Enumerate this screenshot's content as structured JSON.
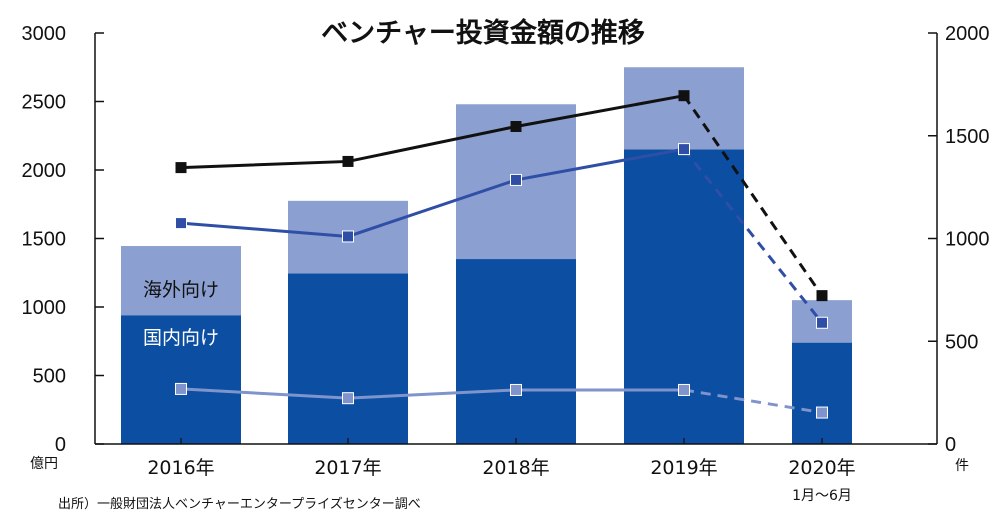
{
  "chart_data": {
    "type": "bar",
    "title": "ベンチャー投資金額の推移",
    "categories": [
      "2016年",
      "2017年",
      "2018年",
      "2019年",
      "2020年"
    ],
    "category_note": "1月～6月",
    "left_axis": {
      "unit": "億円",
      "ylim": [
        0,
        3000
      ],
      "ticks": [
        0,
        500,
        1000,
        1500,
        2000,
        2500,
        3000
      ]
    },
    "right_axis": {
      "unit": "件",
      "ylim": [
        0,
        2000
      ],
      "ticks": [
        0,
        500,
        1000,
        1500,
        2000
      ]
    },
    "stacked_bars": [
      {
        "name": "国内向け",
        "color": "#0b4ea2",
        "values": [
          940,
          1245,
          1350,
          2150,
          740
        ]
      },
      {
        "name": "海外向け",
        "color": "#8b9fd1",
        "values": [
          505,
          530,
          1130,
          600,
          310
        ]
      }
    ],
    "lines": [
      {
        "color": "#111111",
        "axis": "right",
        "values": [
          1345,
          1375,
          1545,
          1695,
          722
        ]
      },
      {
        "color": "#2f4fa6",
        "axis": "right",
        "values": [
          1075,
          1010,
          1285,
          1435,
          590
        ]
      },
      {
        "color": "#7f93cc",
        "axis": "right",
        "values": [
          268,
          223,
          263,
          263,
          153
        ]
      }
    ],
    "dashed_from_index": 3,
    "grid": false
  },
  "source_note": "出所）一般財団法人ベンチャーエンタープライズセンター調べ"
}
